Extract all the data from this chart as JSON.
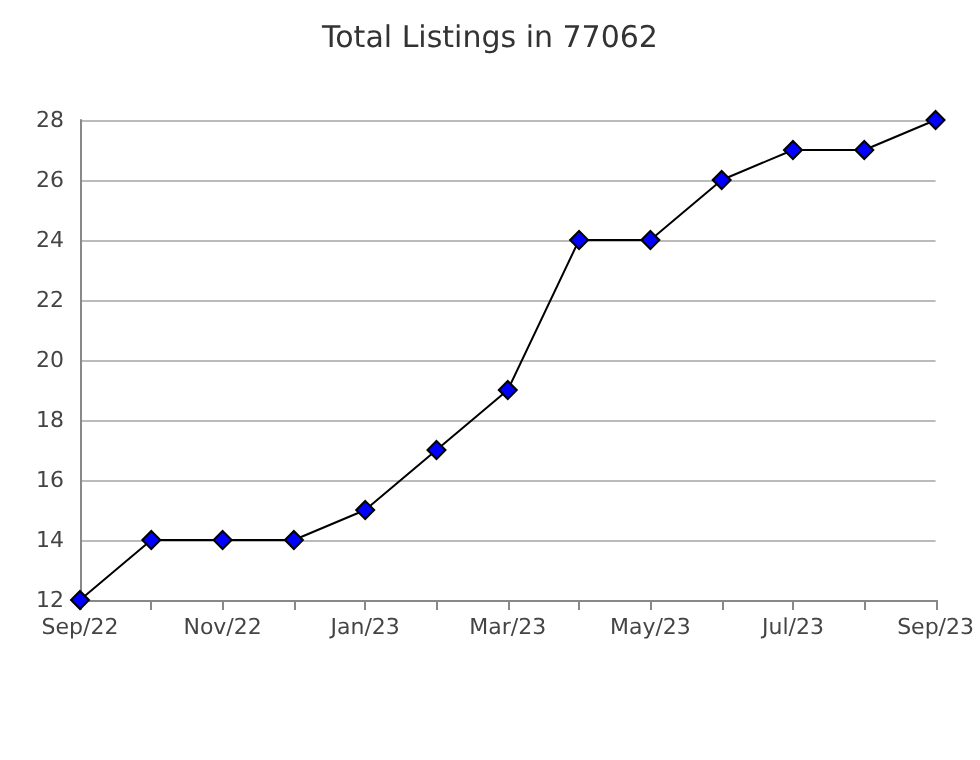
{
  "chart_data": {
    "type": "line",
    "title": "Total Listings in 77062",
    "categories": [
      "Sep/22",
      null,
      "Nov/22",
      null,
      "Jan/23",
      null,
      "Mar/23",
      null,
      "May/23",
      null,
      "Jul/23",
      null,
      "Sep/23"
    ],
    "series": [
      {
        "color": "#0000ff",
        "values": [
          12,
          14,
          14,
          14,
          15,
          17,
          19,
          24,
          24,
          26,
          27,
          27,
          28
        ]
      }
    ],
    "ylim": [
      12,
      28
    ],
    "yticks": [
      12,
      14,
      16,
      18,
      20,
      22,
      24,
      26,
      28
    ],
    "grid": "y",
    "marker": "diamond",
    "line_style": "solid"
  }
}
